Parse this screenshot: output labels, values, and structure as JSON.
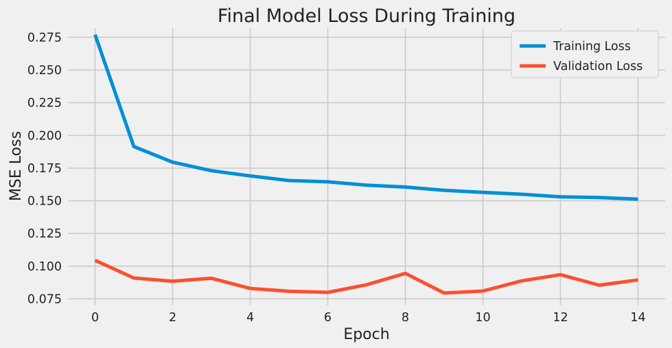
{
  "chart_data": {
    "type": "line",
    "title": "Final Model Loss During Training",
    "xlabel": "Epoch",
    "ylabel": "MSE Loss",
    "x": [
      0,
      1,
      2,
      3,
      4,
      5,
      6,
      7,
      8,
      9,
      10,
      11,
      12,
      13,
      14
    ],
    "xlim": [
      -0.7,
      14.7
    ],
    "ylim": [
      0.07,
      0.282
    ],
    "xticks": [
      0,
      2,
      4,
      6,
      8,
      10,
      12,
      14
    ],
    "yticks": [
      0.075,
      0.1,
      0.125,
      0.15,
      0.175,
      0.2,
      0.225,
      0.25,
      0.275
    ],
    "ytick_labels": [
      "0.075",
      "0.100",
      "0.125",
      "0.150",
      "0.175",
      "0.200",
      "0.225",
      "0.250",
      "0.275"
    ],
    "grid": true,
    "legend": "top-right",
    "series": [
      {
        "name": "Training Loss",
        "color": "#008fd5",
        "values": [
          0.277,
          0.1915,
          0.1795,
          0.173,
          0.169,
          0.1655,
          0.1645,
          0.162,
          0.1605,
          0.158,
          0.1565,
          0.155,
          0.153,
          0.1525,
          0.1513
        ]
      },
      {
        "name": "Validation Loss",
        "color": "#fc4f30",
        "values": [
          0.1045,
          0.091,
          0.0885,
          0.0908,
          0.083,
          0.0808,
          0.08,
          0.0858,
          0.0945,
          0.0795,
          0.081,
          0.0888,
          0.0935,
          0.0855,
          0.0895
        ]
      }
    ]
  }
}
